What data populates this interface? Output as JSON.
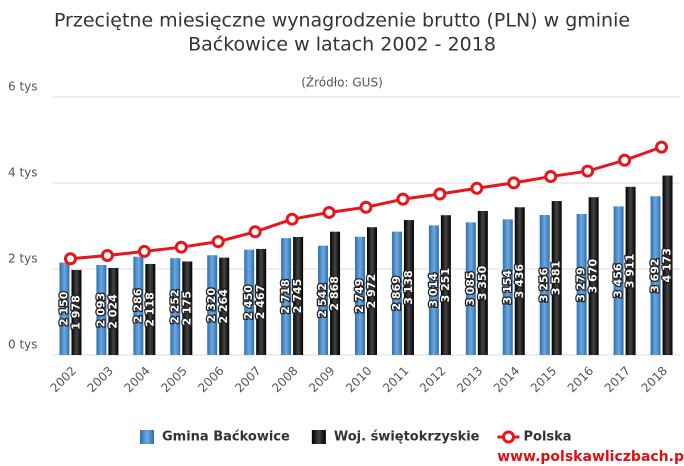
{
  "chart_data": {
    "type": "bar-line",
    "title": [
      "Przeciętne miesięczne wynagrodzenie brutto (PLN) w gminie",
      "Baćkowice w latach 2002 - 2018"
    ],
    "subtitle": "(Źródło: GUS)",
    "watermark": "www.polskawliczbach.p",
    "categories": [
      "2002",
      "2003",
      "2004",
      "2005",
      "2006",
      "2007",
      "2008",
      "2009",
      "2010",
      "2011",
      "2012",
      "2013",
      "2014",
      "2015",
      "2016",
      "2017",
      "2018"
    ],
    "series": [
      {
        "name": "Gmina Baćkowice",
        "color": "#4a8ac9",
        "kind": "bar",
        "values": [
          2150,
          2093,
          2286,
          2252,
          2320,
          2450,
          2718,
          2542,
          2749,
          2869,
          3014,
          3085,
          3154,
          3256,
          3279,
          3456,
          3692
        ],
        "value_labels": [
          "2 150",
          "2 093",
          "2 286",
          "2 252",
          "2 320",
          "2 450",
          "2 718",
          "2 542",
          "2 749",
          "2 869",
          "3 014",
          "3 085",
          "3 154",
          "3 256",
          "3 279",
          "3 456",
          "3 692"
        ]
      },
      {
        "name": "Woj. świętokrzyskie",
        "color": "#151515",
        "kind": "bar",
        "values": [
          1978,
          2024,
          2118,
          2175,
          2264,
          2467,
          2745,
          2868,
          2972,
          3138,
          3251,
          3350,
          3436,
          3581,
          3670,
          3911,
          4173
        ],
        "value_labels": [
          "1 978",
          "2 024",
          "2 118",
          "2 175",
          "2 264",
          "2 467",
          "2 745",
          "2 868",
          "2 972",
          "3 138",
          "3 251",
          "3 350",
          "3 436",
          "3 581",
          "3 670",
          "3 911",
          "4 173"
        ]
      },
      {
        "name": "Polska",
        "color": "#e8151b",
        "kind": "line",
        "values": [
          2239,
          2314,
          2409,
          2507,
          2637,
          2866,
          3158,
          3315,
          3435,
          3625,
          3744,
          3877,
          4003,
          4150,
          4277,
          4529,
          4834
        ]
      }
    ],
    "ylim": [
      0,
      6000
    ],
    "yticks": [
      {
        "value": 0,
        "label": "0 tys"
      },
      {
        "value": 2000,
        "label": "2 tys"
      },
      {
        "value": 4000,
        "label": "4 tys"
      },
      {
        "value": 6000,
        "label": "6 tys"
      }
    ],
    "grid": true
  }
}
